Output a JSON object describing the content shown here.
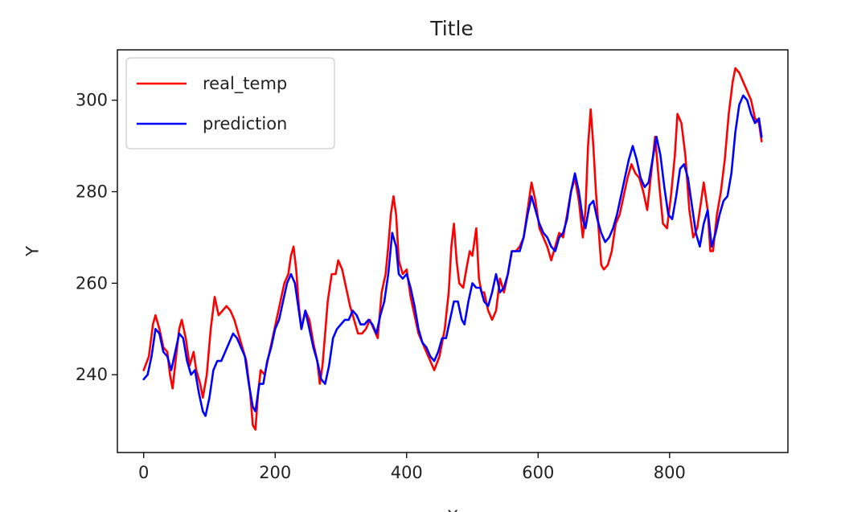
{
  "chart_data": {
    "type": "line",
    "title": "Title",
    "xlabel": "X",
    "ylabel": "Y",
    "xlim": [
      -40,
      980
    ],
    "ylim": [
      223,
      311
    ],
    "xticks": [
      0,
      200,
      400,
      600,
      800
    ],
    "yticks": [
      240,
      260,
      280,
      300
    ],
    "grid": false,
    "legend_position": "top-left",
    "series": [
      {
        "name": "real_temp",
        "color": "#ff0000",
        "points": [
          [
            0,
            241
          ],
          [
            8,
            244
          ],
          [
            14,
            251
          ],
          [
            18,
            253
          ],
          [
            24,
            250
          ],
          [
            30,
            246
          ],
          [
            36,
            245
          ],
          [
            40,
            240
          ],
          [
            44,
            237
          ],
          [
            50,
            245
          ],
          [
            54,
            250
          ],
          [
            58,
            252
          ],
          [
            64,
            248
          ],
          [
            70,
            242
          ],
          [
            76,
            245
          ],
          [
            80,
            241
          ],
          [
            86,
            238
          ],
          [
            90,
            235
          ],
          [
            96,
            240
          ],
          [
            102,
            250
          ],
          [
            108,
            257
          ],
          [
            114,
            253
          ],
          [
            120,
            254
          ],
          [
            126,
            255
          ],
          [
            132,
            254
          ],
          [
            138,
            252
          ],
          [
            144,
            249
          ],
          [
            150,
            246
          ],
          [
            156,
            243
          ],
          [
            162,
            236
          ],
          [
            166,
            229
          ],
          [
            170,
            228
          ],
          [
            174,
            236
          ],
          [
            178,
            241
          ],
          [
            184,
            240
          ],
          [
            190,
            244
          ],
          [
            196,
            248
          ],
          [
            202,
            252
          ],
          [
            208,
            256
          ],
          [
            214,
            260
          ],
          [
            220,
            262
          ],
          [
            224,
            266
          ],
          [
            228,
            268
          ],
          [
            232,
            263
          ],
          [
            236,
            255
          ],
          [
            240,
            250
          ],
          [
            246,
            254
          ],
          [
            252,
            252
          ],
          [
            258,
            247
          ],
          [
            264,
            243
          ],
          [
            268,
            238
          ],
          [
            272,
            242
          ],
          [
            276,
            249
          ],
          [
            280,
            256
          ],
          [
            286,
            262
          ],
          [
            292,
            262
          ],
          [
            296,
            265
          ],
          [
            302,
            263
          ],
          [
            308,
            259
          ],
          [
            314,
            255
          ],
          [
            320,
            252
          ],
          [
            326,
            249
          ],
          [
            332,
            249
          ],
          [
            338,
            250
          ],
          [
            344,
            252
          ],
          [
            350,
            250
          ],
          [
            356,
            248
          ],
          [
            362,
            258
          ],
          [
            368,
            262
          ],
          [
            372,
            268
          ],
          [
            376,
            275
          ],
          [
            380,
            279
          ],
          [
            384,
            275
          ],
          [
            388,
            265
          ],
          [
            394,
            262
          ],
          [
            400,
            263
          ],
          [
            406,
            257
          ],
          [
            412,
            253
          ],
          [
            418,
            249
          ],
          [
            424,
            247
          ],
          [
            430,
            245
          ],
          [
            436,
            243
          ],
          [
            442,
            241
          ],
          [
            450,
            244
          ],
          [
            458,
            250
          ],
          [
            464,
            258
          ],
          [
            468,
            268
          ],
          [
            472,
            273
          ],
          [
            476,
            265
          ],
          [
            480,
            260
          ],
          [
            486,
            259
          ],
          [
            492,
            264
          ],
          [
            496,
            267
          ],
          [
            500,
            266
          ],
          [
            506,
            272
          ],
          [
            510,
            261
          ],
          [
            514,
            258
          ],
          [
            518,
            258
          ],
          [
            524,
            254
          ],
          [
            530,
            252
          ],
          [
            536,
            254
          ],
          [
            542,
            261
          ],
          [
            548,
            258
          ],
          [
            554,
            262
          ],
          [
            560,
            267
          ],
          [
            566,
            267
          ],
          [
            572,
            268
          ],
          [
            578,
            270
          ],
          [
            584,
            276
          ],
          [
            590,
            282
          ],
          [
            596,
            278
          ],
          [
            602,
            272
          ],
          [
            608,
            270
          ],
          [
            614,
            268
          ],
          [
            620,
            265
          ],
          [
            626,
            268
          ],
          [
            632,
            271
          ],
          [
            638,
            270
          ],
          [
            644,
            275
          ],
          [
            650,
            280
          ],
          [
            656,
            283
          ],
          [
            662,
            278
          ],
          [
            668,
            270
          ],
          [
            672,
            276
          ],
          [
            676,
            290
          ],
          [
            680,
            298
          ],
          [
            684,
            290
          ],
          [
            688,
            280
          ],
          [
            692,
            272
          ],
          [
            696,
            264
          ],
          [
            700,
            263
          ],
          [
            706,
            264
          ],
          [
            712,
            267
          ],
          [
            718,
            273
          ],
          [
            724,
            275
          ],
          [
            730,
            279
          ],
          [
            736,
            283
          ],
          [
            742,
            286
          ],
          [
            748,
            284
          ],
          [
            754,
            283
          ],
          [
            760,
            280
          ],
          [
            766,
            276
          ],
          [
            772,
            284
          ],
          [
            778,
            292
          ],
          [
            784,
            282
          ],
          [
            790,
            273
          ],
          [
            796,
            272
          ],
          [
            802,
            279
          ],
          [
            808,
            288
          ],
          [
            812,
            297
          ],
          [
            818,
            295
          ],
          [
            824,
            288
          ],
          [
            830,
            276
          ],
          [
            836,
            270
          ],
          [
            842,
            272
          ],
          [
            848,
            278
          ],
          [
            852,
            282
          ],
          [
            858,
            276
          ],
          [
            862,
            267
          ],
          [
            866,
            267
          ],
          [
            872,
            275
          ],
          [
            878,
            280
          ],
          [
            884,
            287
          ],
          [
            890,
            297
          ],
          [
            896,
            304
          ],
          [
            900,
            307
          ],
          [
            906,
            306
          ],
          [
            912,
            304
          ],
          [
            918,
            302
          ],
          [
            924,
            300
          ],
          [
            930,
            296
          ],
          [
            936,
            295
          ],
          [
            940,
            291
          ]
        ]
      },
      {
        "name": "prediction",
        "color": "#0000ff",
        "points": [
          [
            0,
            239
          ],
          [
            6,
            240
          ],
          [
            12,
            244
          ],
          [
            18,
            250
          ],
          [
            24,
            249
          ],
          [
            30,
            245
          ],
          [
            36,
            244
          ],
          [
            42,
            241
          ],
          [
            48,
            245
          ],
          [
            54,
            249
          ],
          [
            60,
            248
          ],
          [
            66,
            243
          ],
          [
            72,
            240
          ],
          [
            78,
            241
          ],
          [
            84,
            236
          ],
          [
            90,
            232
          ],
          [
            94,
            231
          ],
          [
            100,
            235
          ],
          [
            106,
            241
          ],
          [
            112,
            243
          ],
          [
            118,
            243
          ],
          [
            124,
            245
          ],
          [
            130,
            247
          ],
          [
            136,
            249
          ],
          [
            142,
            248
          ],
          [
            148,
            246
          ],
          [
            154,
            244
          ],
          [
            160,
            238
          ],
          [
            166,
            233
          ],
          [
            170,
            232
          ],
          [
            176,
            238
          ],
          [
            182,
            238
          ],
          [
            188,
            243
          ],
          [
            194,
            246
          ],
          [
            200,
            250
          ],
          [
            206,
            252
          ],
          [
            212,
            256
          ],
          [
            218,
            260
          ],
          [
            224,
            262
          ],
          [
            230,
            260
          ],
          [
            236,
            254
          ],
          [
            240,
            250
          ],
          [
            246,
            254
          ],
          [
            252,
            250
          ],
          [
            258,
            246
          ],
          [
            264,
            243
          ],
          [
            270,
            239
          ],
          [
            276,
            238
          ],
          [
            282,
            242
          ],
          [
            288,
            248
          ],
          [
            294,
            250
          ],
          [
            300,
            251
          ],
          [
            306,
            252
          ],
          [
            312,
            252
          ],
          [
            318,
            254
          ],
          [
            324,
            253
          ],
          [
            330,
            251
          ],
          [
            336,
            251
          ],
          [
            342,
            252
          ],
          [
            348,
            251
          ],
          [
            354,
            249
          ],
          [
            360,
            253
          ],
          [
            366,
            256
          ],
          [
            372,
            262
          ],
          [
            378,
            271
          ],
          [
            384,
            268
          ],
          [
            388,
            262
          ],
          [
            394,
            261
          ],
          [
            400,
            262
          ],
          [
            406,
            259
          ],
          [
            412,
            255
          ],
          [
            418,
            250
          ],
          [
            424,
            247
          ],
          [
            430,
            246
          ],
          [
            436,
            244
          ],
          [
            442,
            243
          ],
          [
            448,
            245
          ],
          [
            454,
            248
          ],
          [
            460,
            248
          ],
          [
            466,
            252
          ],
          [
            472,
            256
          ],
          [
            478,
            256
          ],
          [
            484,
            252
          ],
          [
            488,
            251
          ],
          [
            494,
            256
          ],
          [
            500,
            260
          ],
          [
            506,
            259
          ],
          [
            512,
            259
          ],
          [
            518,
            256
          ],
          [
            524,
            255
          ],
          [
            530,
            258
          ],
          [
            536,
            262
          ],
          [
            542,
            258
          ],
          [
            548,
            259
          ],
          [
            554,
            262
          ],
          [
            560,
            267
          ],
          [
            566,
            267
          ],
          [
            572,
            267
          ],
          [
            578,
            270
          ],
          [
            584,
            275
          ],
          [
            590,
            279
          ],
          [
            596,
            276
          ],
          [
            602,
            273
          ],
          [
            608,
            271
          ],
          [
            614,
            270
          ],
          [
            620,
            268
          ],
          [
            626,
            267
          ],
          [
            632,
            270
          ],
          [
            638,
            271
          ],
          [
            644,
            274
          ],
          [
            650,
            280
          ],
          [
            656,
            284
          ],
          [
            662,
            280
          ],
          [
            668,
            274
          ],
          [
            672,
            272
          ],
          [
            678,
            277
          ],
          [
            684,
            278
          ],
          [
            690,
            274
          ],
          [
            696,
            271
          ],
          [
            702,
            269
          ],
          [
            708,
            270
          ],
          [
            714,
            272
          ],
          [
            720,
            275
          ],
          [
            726,
            279
          ],
          [
            732,
            283
          ],
          [
            738,
            287
          ],
          [
            744,
            290
          ],
          [
            750,
            287
          ],
          [
            756,
            283
          ],
          [
            762,
            281
          ],
          [
            768,
            282
          ],
          [
            774,
            287
          ],
          [
            780,
            292
          ],
          [
            786,
            288
          ],
          [
            792,
            281
          ],
          [
            798,
            275
          ],
          [
            804,
            274
          ],
          [
            810,
            279
          ],
          [
            816,
            285
          ],
          [
            822,
            286
          ],
          [
            828,
            283
          ],
          [
            834,
            277
          ],
          [
            840,
            271
          ],
          [
            846,
            268
          ],
          [
            852,
            273
          ],
          [
            858,
            276
          ],
          [
            864,
            268
          ],
          [
            870,
            271
          ],
          [
            876,
            275
          ],
          [
            882,
            278
          ],
          [
            888,
            279
          ],
          [
            894,
            284
          ],
          [
            900,
            293
          ],
          [
            906,
            299
          ],
          [
            912,
            301
          ],
          [
            918,
            300
          ],
          [
            924,
            297
          ],
          [
            930,
            295
          ],
          [
            936,
            296
          ],
          [
            940,
            292
          ]
        ]
      }
    ]
  }
}
